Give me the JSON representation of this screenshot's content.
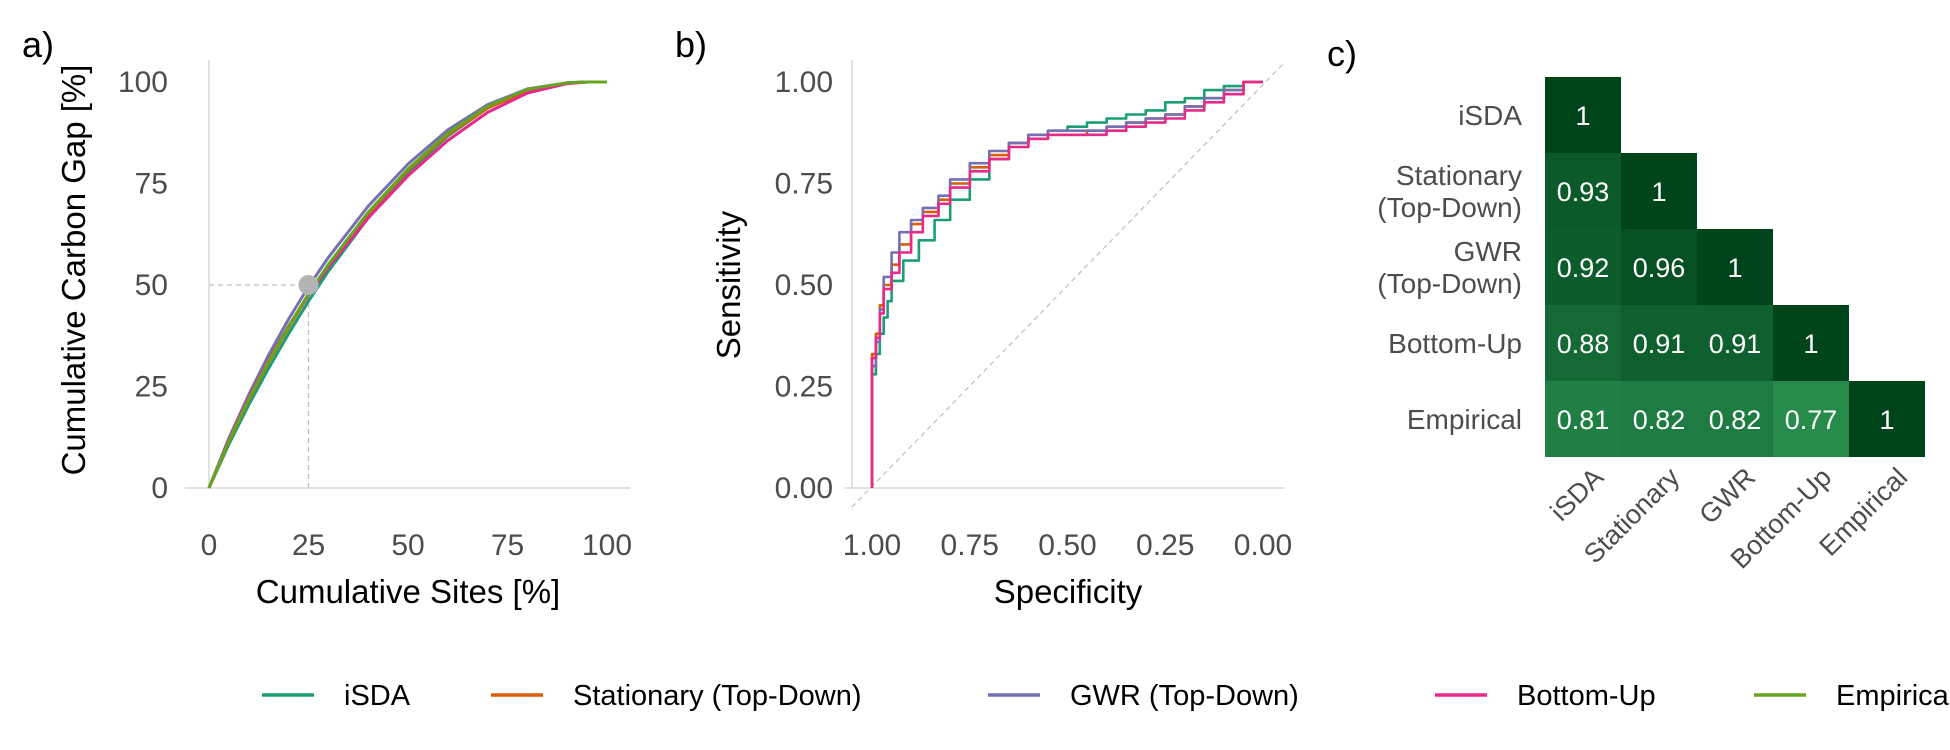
{
  "chart_data": [
    {
      "type": "line",
      "panel_label": "a)",
      "xlabel": "Cumulative Sites [%]",
      "ylabel": "Cumulative Carbon Gap [%]",
      "xlim": [
        0,
        100
      ],
      "ylim": [
        0,
        100
      ],
      "xticks": [
        "0",
        "25",
        "50",
        "75",
        "100"
      ],
      "yticks": [
        "0",
        "25",
        "50",
        "75",
        "100"
      ],
      "reference_point": {
        "x": 25,
        "y": 50
      },
      "series": [
        {
          "name": "iSDA",
          "color": "#1b9e77",
          "x": [
            0,
            5,
            10,
            15,
            20,
            25,
            30,
            40,
            50,
            60,
            70,
            80,
            90,
            95,
            100
          ],
          "y": [
            0,
            10.8,
            20.5,
            29.5,
            38,
            46,
            53.4,
            66.5,
            77.6,
            86.7,
            93.6,
            98,
            99.8,
            100,
            100
          ]
        },
        {
          "name": "Stationary (Top-Down)",
          "color": "#d95f02",
          "x": [
            0,
            5,
            10,
            15,
            20,
            25,
            30,
            40,
            50,
            60,
            70,
            80,
            90,
            95,
            100
          ],
          "y": [
            0,
            11.5,
            21.7,
            31,
            39.5,
            47.5,
            54.8,
            67.6,
            78.3,
            87,
            93.6,
            97.8,
            99.7,
            100,
            100
          ]
        },
        {
          "name": "GWR (Top-Down)",
          "color": "#7570b3",
          "x": [
            0,
            5,
            10,
            15,
            20,
            25,
            30,
            40,
            50,
            60,
            70,
            80,
            90,
            95,
            100
          ],
          "y": [
            0,
            12.3,
            23,
            32.8,
            41.6,
            49.6,
            56.8,
            69.4,
            79.8,
            88.2,
            94.4,
            98.3,
            99.8,
            100,
            100
          ]
        },
        {
          "name": "Bottom-Up",
          "color": "#e7298a",
          "x": [
            0,
            5,
            10,
            15,
            20,
            25,
            30,
            40,
            50,
            60,
            70,
            80,
            90,
            95,
            100
          ],
          "y": [
            0,
            11.9,
            22.3,
            31.6,
            39.9,
            47.5,
            54.4,
            66.5,
            76.9,
            85.6,
            92.5,
            97.3,
            99.6,
            100,
            100
          ]
        },
        {
          "name": "Empirical",
          "color": "#66a61e",
          "x": [
            0,
            5,
            10,
            15,
            20,
            25,
            30,
            40,
            50,
            60,
            70,
            80,
            90,
            95,
            100
          ],
          "y": [
            0,
            11.6,
            21.9,
            31.3,
            39.8,
            47.8,
            55.1,
            67.9,
            78.6,
            87.4,
            94,
            98.2,
            99.8,
            100,
            100
          ]
        }
      ]
    },
    {
      "type": "line",
      "panel_label": "b)",
      "xlabel": "Specificity",
      "ylabel": "Sensitivity",
      "xlim": [
        1,
        0
      ],
      "ylim": [
        0,
        1
      ],
      "xticks": [
        "1.00",
        "0.75",
        "0.50",
        "0.25",
        "0.00"
      ],
      "yticks": [
        "0.00",
        "0.25",
        "0.50",
        "0.75",
        "1.00"
      ],
      "series": [
        {
          "name": "iSDA",
          "color": "#1b9e77",
          "x": [
            1,
            1,
            0.99,
            0.98,
            0.97,
            0.96,
            0.95,
            0.92,
            0.88,
            0.84,
            0.8,
            0.75,
            0.7,
            0.65,
            0.6,
            0.55,
            0.5,
            0.45,
            0.4,
            0.35,
            0.3,
            0.25,
            0.2,
            0.15,
            0.1,
            0.05,
            0
          ],
          "y": [
            0,
            0.15,
            0.28,
            0.33,
            0.38,
            0.42,
            0.46,
            0.51,
            0.56,
            0.61,
            0.66,
            0.71,
            0.76,
            0.81,
            0.85,
            0.87,
            0.88,
            0.89,
            0.9,
            0.91,
            0.92,
            0.93,
            0.95,
            0.96,
            0.98,
            0.99,
            1
          ]
        },
        {
          "name": "Stationary (Top-Down)",
          "color": "#d95f02",
          "x": [
            1,
            1,
            0.99,
            0.98,
            0.97,
            0.95,
            0.93,
            0.9,
            0.87,
            0.83,
            0.8,
            0.75,
            0.7,
            0.65,
            0.6,
            0.55,
            0.5,
            0.45,
            0.4,
            0.35,
            0.3,
            0.25,
            0.2,
            0.15,
            0.1,
            0.05,
            0
          ],
          "y": [
            0,
            0.17,
            0.33,
            0.38,
            0.45,
            0.5,
            0.55,
            0.6,
            0.65,
            0.68,
            0.71,
            0.75,
            0.79,
            0.82,
            0.85,
            0.86,
            0.87,
            0.87,
            0.88,
            0.89,
            0.9,
            0.91,
            0.92,
            0.94,
            0.96,
            0.98,
            1
          ]
        },
        {
          "name": "GWR (Top-Down)",
          "color": "#7570b3",
          "x": [
            1,
            1,
            0.99,
            0.98,
            0.97,
            0.95,
            0.93,
            0.9,
            0.87,
            0.83,
            0.8,
            0.75,
            0.7,
            0.65,
            0.6,
            0.55,
            0.5,
            0.45,
            0.4,
            0.35,
            0.3,
            0.25,
            0.2,
            0.15,
            0.1,
            0.05,
            0
          ],
          "y": [
            0,
            0.19,
            0.3,
            0.36,
            0.44,
            0.52,
            0.58,
            0.63,
            0.66,
            0.69,
            0.72,
            0.76,
            0.8,
            0.83,
            0.85,
            0.87,
            0.88,
            0.88,
            0.88,
            0.89,
            0.9,
            0.91,
            0.92,
            0.94,
            0.96,
            0.98,
            1
          ]
        },
        {
          "name": "Bottom-Up",
          "color": "#e7298a",
          "x": [
            1,
            1,
            0.99,
            0.98,
            0.97,
            0.95,
            0.93,
            0.9,
            0.87,
            0.83,
            0.8,
            0.75,
            0.7,
            0.65,
            0.6,
            0.55,
            0.5,
            0.45,
            0.4,
            0.35,
            0.3,
            0.25,
            0.2,
            0.15,
            0.1,
            0.05,
            0
          ],
          "y": [
            0,
            0.12,
            0.32,
            0.37,
            0.43,
            0.49,
            0.53,
            0.58,
            0.63,
            0.67,
            0.7,
            0.74,
            0.78,
            0.81,
            0.84,
            0.86,
            0.87,
            0.87,
            0.87,
            0.88,
            0.89,
            0.9,
            0.91,
            0.93,
            0.95,
            0.97,
            1
          ]
        },
        {
          "name": "Empirical",
          "color": "#66a61e",
          "x": [],
          "y": []
        }
      ]
    },
    {
      "type": "heatmap",
      "panel_label": "c)",
      "row_labels": [
        [
          "iSDA"
        ],
        [
          "Stationary",
          "(Top-Down)"
        ],
        [
          "GWR",
          "(Top-Down)"
        ],
        [
          "Bottom-Up"
        ],
        [
          "Empirical"
        ]
      ],
      "col_labels": [
        "iSDA",
        "Stationary",
        "GWR",
        "Bottom-Up",
        "Empirical"
      ],
      "values": [
        [
          1,
          null,
          null,
          null,
          null
        ],
        [
          0.93,
          1,
          null,
          null,
          null
        ],
        [
          0.92,
          0.96,
          1,
          null,
          null
        ],
        [
          0.88,
          0.91,
          0.91,
          1,
          null
        ],
        [
          0.81,
          0.82,
          0.82,
          0.77,
          1
        ]
      ],
      "cell_labels": [
        [
          "1",
          "",
          "",
          "",
          ""
        ],
        [
          "0.93",
          "1",
          "",
          "",
          ""
        ],
        [
          "0.92",
          "0.96",
          "1",
          "",
          ""
        ],
        [
          "0.88",
          "0.91",
          "0.91",
          "1",
          ""
        ],
        [
          "0.81",
          "0.82",
          "0.82",
          "0.77",
          "1"
        ]
      ],
      "colors": {
        "max": "#00441b",
        "min": "#2a9150"
      }
    }
  ],
  "legend": {
    "placement": "bottom",
    "items": [
      {
        "name": "iSDA",
        "color": "#1b9e77"
      },
      {
        "name": "Stationary (Top-Down)",
        "color": "#d95f02"
      },
      {
        "name": "GWR (Top-Down)",
        "color": "#7570b3"
      },
      {
        "name": "Bottom-Up",
        "color": "#e7298a"
      },
      {
        "name": "Empirical",
        "color": "#66a61e"
      }
    ]
  }
}
